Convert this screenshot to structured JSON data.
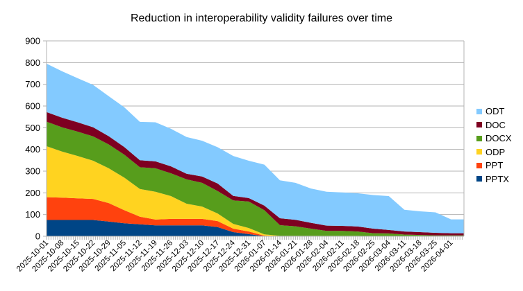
{
  "chart_data": {
    "type": "area",
    "stacked": true,
    "title": "Reduction in interoperability validity failures over time",
    "xlabel": "",
    "ylabel": "",
    "ylim": [
      0,
      900
    ],
    "yticks": [
      "0",
      "100",
      "200",
      "300",
      "400",
      "500",
      "600",
      "700",
      "800",
      "900"
    ],
    "grid": true,
    "legend_position": "right",
    "categories": [
      "2025-10-01",
      "2025-10-08",
      "2025-10-15",
      "2025-10-22",
      "2025-10-29",
      "2025-11-05",
      "2025-11-12",
      "2025-11-19",
      "2025-11-26",
      "2025-12-03",
      "2025-12-10",
      "2025-12-17",
      "2025-12-24",
      "2025-12-31",
      "2026-01-07",
      "2026-01-14",
      "2026-01-21",
      "2026-01-28",
      "2026-02-04",
      "2026-02-11",
      "2026-02-18",
      "2026-02-25",
      "2026-03-04",
      "2026-03-11",
      "2026-03-18",
      "2026-03-25",
      "2026-04-01"
    ],
    "series": [
      {
        "name": "PPTX",
        "color": "#004586",
        "values": [
          75,
          75,
          75,
          75,
          68,
          60,
          55,
          50,
          50,
          50,
          50,
          42,
          19,
          10,
          1,
          0,
          0,
          0,
          0,
          0,
          0,
          0,
          0,
          0,
          0,
          0,
          0
        ]
      },
      {
        "name": "PPT",
        "color": "#ff420e",
        "values": [
          105,
          103,
          100,
          97,
          85,
          60,
          35,
          27,
          30,
          30,
          30,
          28,
          16,
          12,
          2,
          0,
          0,
          0,
          0,
          0,
          0,
          0,
          0,
          0,
          0,
          0,
          0
        ]
      },
      {
        "name": "ODP",
        "color": "#ffd320",
        "values": [
          235,
          212,
          195,
          176,
          160,
          150,
          128,
          128,
          105,
          70,
          57,
          35,
          22,
          16,
          6,
          2,
          2,
          2,
          2,
          2,
          2,
          1,
          1,
          1,
          0,
          0,
          0
        ]
      },
      {
        "name": "DOCX",
        "color": "#579d1c",
        "values": [
          113,
          112,
          112,
          112,
          110,
          106,
          100,
          108,
          105,
          112,
          109,
          103,
          108,
          122,
          111,
          49,
          44,
          33,
          23,
          23,
          20,
          13,
          12,
          7,
          6,
          4,
          4
        ]
      },
      {
        "name": "DOC",
        "color": "#7e0021",
        "values": [
          44,
          44,
          43,
          42,
          38,
          35,
          32,
          32,
          32,
          26,
          29,
          35,
          21,
          16,
          21,
          32,
          30,
          27,
          24,
          23,
          23,
          21,
          16,
          14,
          13,
          12,
          10
        ]
      },
      {
        "name": "ODT",
        "color": "#83caff",
        "values": [
          223,
          214,
          203,
          195,
          184,
          183,
          177,
          180,
          173,
          169,
          165,
          167,
          184,
          172,
          189,
          175,
          170,
          158,
          156,
          154,
          153,
          155,
          156,
          100,
          96,
          94,
          64
        ]
      }
    ],
    "legend_order": [
      "ODT",
      "DOC",
      "DOCX",
      "ODP",
      "PPT",
      "PPTX"
    ]
  }
}
